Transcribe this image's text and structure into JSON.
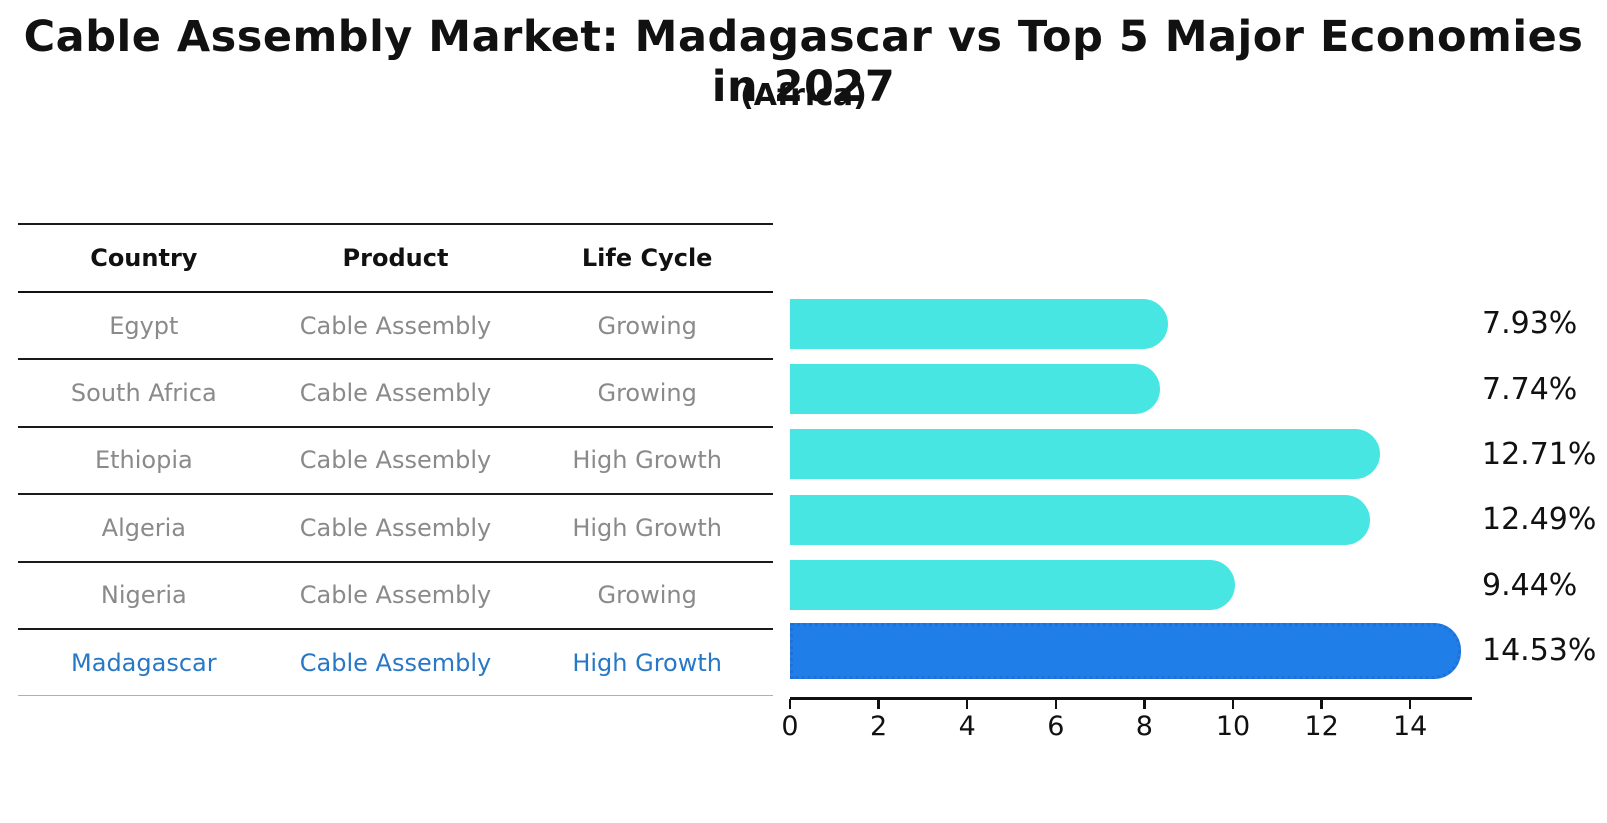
{
  "title": "Cable Assembly Market: Madagascar vs Top 5 Major Economies in 2027",
  "subtitle": "(Africa)",
  "table": {
    "headers": [
      "Country",
      "Product",
      "Life Cycle"
    ],
    "rows": [
      {
        "country": "Egypt",
        "product": "Cable Assembly",
        "life_cycle": "Growing",
        "highlight": false
      },
      {
        "country": "South Africa",
        "product": "Cable Assembly",
        "life_cycle": "Growing",
        "highlight": false
      },
      {
        "country": "Ethiopia",
        "product": "Cable Assembly",
        "life_cycle": "High Growth",
        "highlight": false
      },
      {
        "country": "Algeria",
        "product": "Cable Assembly",
        "life_cycle": "High Growth",
        "highlight": false
      },
      {
        "country": "Nigeria",
        "product": "Cable Assembly",
        "life_cycle": "Growing",
        "highlight": false
      },
      {
        "country": "Madagascar",
        "product": "Cable Assembly",
        "life_cycle": "High Growth",
        "highlight": true
      }
    ]
  },
  "chart_data": {
    "type": "bar",
    "orientation": "horizontal",
    "title": "Cable Assembly Market: Madagascar vs Top 5 Major Economies in 2027 (Africa)",
    "categories": [
      "Egypt",
      "South Africa",
      "Ethiopia",
      "Algeria",
      "Nigeria",
      "Madagascar"
    ],
    "values": [
      7.93,
      7.74,
      12.71,
      12.49,
      9.44,
      14.53
    ],
    "value_labels": [
      "7.93%",
      "7.74%",
      "12.71%",
      "12.49%",
      "9.44%",
      "14.53%"
    ],
    "highlight_index": 5,
    "xticks": [
      0,
      2,
      4,
      6,
      8,
      10,
      12,
      14
    ],
    "xtick_labels": [
      "0",
      "2",
      "4",
      "6",
      "8",
      "10",
      "12",
      "14"
    ],
    "xlim": [
      0,
      15.35
    ],
    "grid": false,
    "legend": false
  },
  "colors": {
    "bar": "#48E6E2",
    "highlight_bar": "#1F7EE8",
    "highlight_border": "#2070D8",
    "highlight_text": "#2878C8",
    "muted_text": "#8A8A8A",
    "ink": "#111111"
  }
}
